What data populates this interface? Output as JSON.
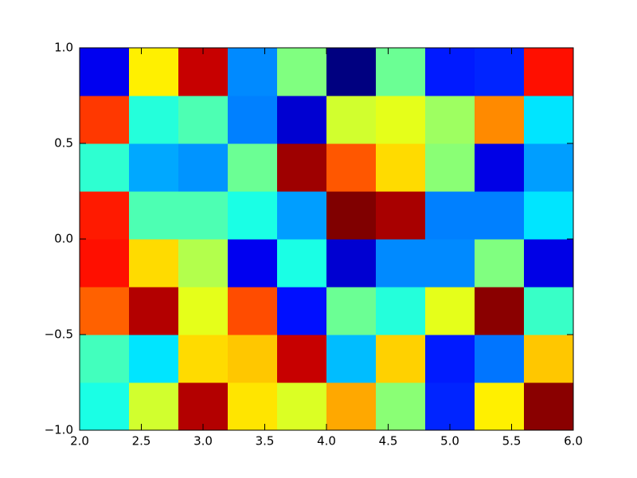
{
  "chart_data": {
    "type": "heatmap",
    "colormap": "jet",
    "xedges": [
      2,
      2.4,
      2.8,
      3.2,
      3.6,
      4,
      4.4,
      4.8,
      5.2,
      5.6,
      6
    ],
    "yedges": [
      -1,
      -0.75,
      -0.5,
      -0.25,
      0,
      0.25,
      0.5,
      0.75,
      1
    ],
    "z": [
      [
        0.4,
        0.58,
        0.95,
        0.65,
        0.59,
        0.71,
        0.51,
        0.16,
        0.64,
        0.99
      ],
      [
        0.44,
        0.35,
        0.66,
        0.68,
        0.93,
        0.31,
        0.67,
        0.15,
        0.24,
        0.68
      ],
      [
        0.78,
        0.95,
        0.6,
        0.8,
        0.14,
        0.48,
        0.41,
        0.6,
        0.99,
        0.43
      ],
      [
        0.86,
        0.66,
        0.55,
        0.11,
        0.4,
        0.08,
        0.26,
        0.26,
        0.5,
        0.1
      ],
      [
        0.85,
        0.45,
        0.45,
        0.4,
        0.28,
        1.0,
        0.96,
        0.25,
        0.25,
        0.35
      ],
      [
        0.42,
        0.29,
        0.27,
        0.48,
        0.97,
        0.79,
        0.66,
        0.51,
        0.1,
        0.28
      ],
      [
        0.82,
        0.41,
        0.45,
        0.25,
        0.08,
        0.58,
        0.6,
        0.53,
        0.74,
        0.35
      ],
      [
        0.11,
        0.64,
        0.93,
        0.26,
        0.5,
        0.0,
        0.48,
        0.15,
        0.16,
        0.86
      ]
    ],
    "xlim": [
      2,
      6
    ],
    "ylim": [
      -1,
      1
    ],
    "xticks": [
      {
        "value": 2,
        "label": "2.0"
      },
      {
        "value": 2.5,
        "label": "2.5"
      },
      {
        "value": 3,
        "label": "3.0"
      },
      {
        "value": 3.5,
        "label": "3.5"
      },
      {
        "value": 4,
        "label": "4.0"
      },
      {
        "value": 4.5,
        "label": "4.5"
      },
      {
        "value": 5,
        "label": "5.0"
      },
      {
        "value": 5.5,
        "label": "5.5"
      },
      {
        "value": 6,
        "label": "6.0"
      }
    ],
    "yticks": [
      {
        "value": -1,
        "label": "−1.0"
      },
      {
        "value": -0.5,
        "label": "−0.5"
      },
      {
        "value": 0,
        "label": "0.0"
      },
      {
        "value": 0.5,
        "label": "0.5"
      },
      {
        "value": 1,
        "label": "1.0"
      }
    ]
  }
}
